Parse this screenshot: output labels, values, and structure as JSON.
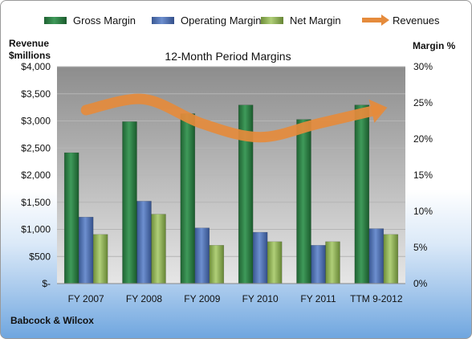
{
  "chart_data": {
    "type": "bar",
    "title": "12-Month Period Margins",
    "company": "Babcock & Wilcox",
    "left_axis_label": [
      "Revenue",
      "$millions"
    ],
    "right_axis_label": "Margin %",
    "categories": [
      "FY 2007",
      "FY 2008",
      "FY 2009",
      "FY 2010",
      "FY 2011",
      "TTM 9-2012"
    ],
    "left_ticks": [
      "$-",
      "$500",
      "$1,000",
      "$1,500",
      "$2,000",
      "$2,500",
      "$3,000",
      "$3,500",
      "$4,000"
    ],
    "right_ticks": [
      "0%",
      "5%",
      "10%",
      "15%",
      "20%",
      "25%",
      "30%"
    ],
    "ylim_left": [
      0,
      4000
    ],
    "ylim_right": [
      0,
      30
    ],
    "series": [
      {
        "name": "Gross Margin",
        "axis": "right",
        "color": "#2e7d46",
        "values": [
          18.1,
          22.4,
          23.5,
          24.7,
          22.7,
          24.7
        ]
      },
      {
        "name": "Operating Margin",
        "axis": "right",
        "color": "#4f6fb0",
        "values": [
          9.2,
          11.4,
          7.7,
          7.1,
          5.3,
          7.6
        ]
      },
      {
        "name": "Net Margin",
        "axis": "right",
        "color": "#93b65a",
        "values": [
          6.8,
          9.6,
          5.3,
          5.8,
          5.8,
          6.8
        ]
      },
      {
        "name": "Revenues",
        "axis": "left",
        "type": "line",
        "color": "#e58b3c",
        "values": [
          3200,
          3400,
          2950,
          2700,
          2950,
          3200
        ]
      }
    ]
  }
}
